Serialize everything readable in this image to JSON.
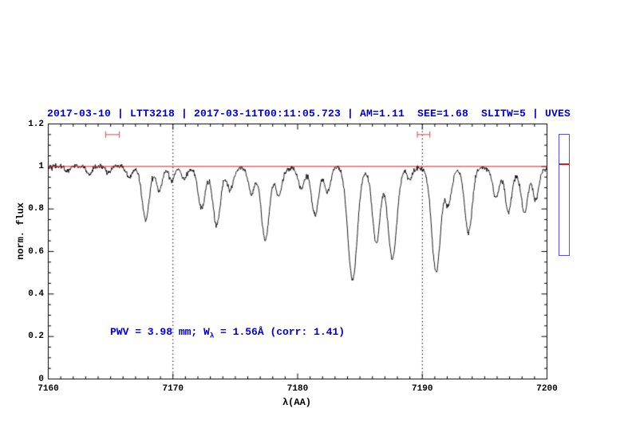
{
  "chart_data": {
    "type": "line",
    "title": "2017-03-10 | LTT3218 | 2017-03-11T00:11:05.723 | AM=1.11  SEE=1.68  SLITW=5 | UVES",
    "title_color": "#0000cc",
    "xlabel": "λ(AA)",
    "ylabel": "norm. flux",
    "annotation": {
      "prefix": "PWV = 3.98 mm; W",
      "sub": "λ",
      "suffix": " = 1.56Å (corr: 1.41)",
      "color": "#0000cc"
    },
    "axes": {
      "xlim": [
        7160,
        7200
      ],
      "ylim": [
        0,
        1.2
      ],
      "xticks": [
        7160,
        7170,
        7180,
        7190,
        7200
      ],
      "xtick_labels": [
        "7160",
        "7170",
        "7180",
        "7190",
        "7200"
      ],
      "yticks": [
        0,
        0.2,
        0.4,
        0.6,
        0.8,
        1,
        1.2
      ],
      "ytick_labels": [
        "0",
        "0.2",
        "0.4",
        "0.6",
        "0.8",
        "1",
        "1.2"
      ],
      "x_minor_step": 1,
      "y_minor_step": 0.05,
      "grid": false,
      "legend": "none"
    },
    "continuum": {
      "level": 1.0,
      "color": "#cc2222"
    },
    "vlines": {
      "x": [
        7170,
        7190
      ],
      "style": "dotted",
      "color": "#000000"
    },
    "h_markers": {
      "color": "#cc6666",
      "y": 1.15,
      "items": [
        {
          "x1": 7164.6,
          "x2": 7165.7
        },
        {
          "x1": 7189.6,
          "x2": 7190.6
        }
      ]
    },
    "spectrum": {
      "color": "#000000",
      "noise_sigma": 0.006,
      "seed": 42,
      "samples": 1200,
      "absorption_lines": [
        [
          7161.5,
          0.02,
          0.2
        ],
        [
          7163.3,
          0.04,
          0.2
        ],
        [
          7164.8,
          0.03,
          0.2
        ],
        [
          7166.5,
          0.05,
          0.22
        ],
        [
          7167.8,
          0.23,
          0.28
        ],
        [
          7168.9,
          0.1,
          0.22
        ],
        [
          7169.9,
          0.06,
          0.2
        ],
        [
          7170.9,
          0.05,
          0.2
        ],
        [
          7172.3,
          0.18,
          0.28
        ],
        [
          7173.5,
          0.26,
          0.3
        ],
        [
          7174.6,
          0.1,
          0.25
        ],
        [
          7176.3,
          0.12,
          0.25
        ],
        [
          7177.4,
          0.33,
          0.32
        ],
        [
          7178.5,
          0.12,
          0.25
        ],
        [
          7180.3,
          0.1,
          0.25
        ],
        [
          7181.4,
          0.23,
          0.3
        ],
        [
          7182.4,
          0.12,
          0.25
        ],
        [
          7184.4,
          0.53,
          0.38
        ],
        [
          7186.3,
          0.33,
          0.3
        ],
        [
          7187.6,
          0.4,
          0.34
        ],
        [
          7189.0,
          0.05,
          0.2
        ],
        [
          7191.1,
          0.47,
          0.35
        ],
        [
          7192.1,
          0.15,
          0.25
        ],
        [
          7193.7,
          0.31,
          0.3
        ],
        [
          7195.9,
          0.13,
          0.25
        ],
        [
          7196.9,
          0.18,
          0.25
        ],
        [
          7198.2,
          0.18,
          0.25
        ],
        [
          7199.1,
          0.13,
          0.22
        ],
        [
          7168.3,
          0.02,
          1.0
        ],
        [
          7173.0,
          0.02,
          1.5
        ],
        [
          7178.0,
          0.02,
          1.2
        ],
        [
          7187.0,
          0.04,
          1.2
        ],
        [
          7191.6,
          0.03,
          1.0
        ],
        [
          7197.8,
          0.04,
          1.5
        ]
      ]
    },
    "side_indicator": {
      "border_color": "#5555cc",
      "marker_color": "#cc2222"
    }
  }
}
